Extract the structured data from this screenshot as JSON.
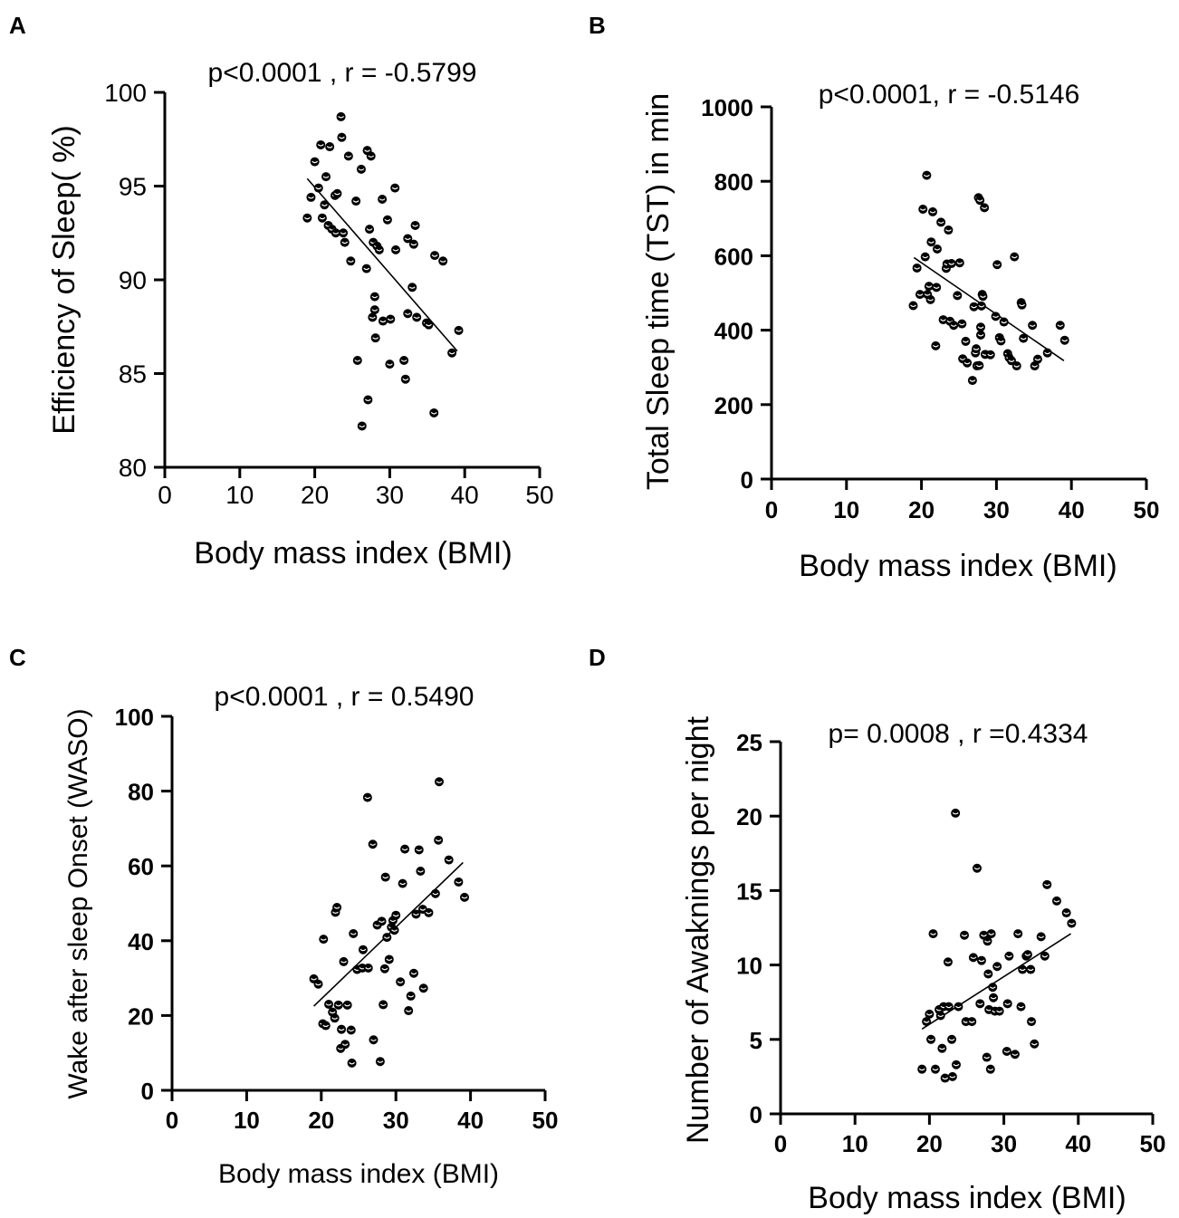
{
  "chart_data": [
    {
      "panel": "A",
      "type": "scatter",
      "annotation": "p<0.0001 , r = -0.5799",
      "xlabel": "Body mass index (BMI)",
      "ylabel": "Efficiency of Sleep( %)",
      "xlim": [
        0,
        50
      ],
      "ylim": [
        80,
        100
      ],
      "xticks": [
        "0",
        "10",
        "20",
        "30",
        "40",
        "50"
      ],
      "yticks": [
        "80",
        "85",
        "90",
        "95",
        "100"
      ],
      "fit_line": [
        [
          19.0,
          95.4
        ],
        [
          39.0,
          86.2
        ]
      ],
      "points": [
        [
          19.0,
          93.3
        ],
        [
          19.5,
          94.4
        ],
        [
          20.0,
          96.3
        ],
        [
          20.5,
          94.9
        ],
        [
          20.8,
          97.2
        ],
        [
          21.0,
          93.3
        ],
        [
          21.3,
          94.0
        ],
        [
          21.5,
          95.5
        ],
        [
          21.8,
          92.9
        ],
        [
          22.0,
          97.1
        ],
        [
          22.3,
          92.7
        ],
        [
          22.7,
          94.5
        ],
        [
          22.8,
          92.5
        ],
        [
          23.0,
          94.6
        ],
        [
          23.5,
          98.7
        ],
        [
          23.6,
          97.6
        ],
        [
          23.8,
          92.5
        ],
        [
          24.0,
          92.0
        ],
        [
          24.5,
          96.6
        ],
        [
          24.8,
          91.0
        ],
        [
          25.5,
          94.2
        ],
        [
          25.7,
          85.7
        ],
        [
          26.2,
          95.9
        ],
        [
          26.3,
          82.2
        ],
        [
          26.9,
          90.6
        ],
        [
          27.0,
          96.9
        ],
        [
          27.1,
          83.6
        ],
        [
          27.3,
          92.7
        ],
        [
          27.5,
          96.6
        ],
        [
          27.7,
          88.0
        ],
        [
          27.8,
          92.0
        ],
        [
          28.0,
          89.1
        ],
        [
          28.0,
          88.4
        ],
        [
          28.1,
          86.9
        ],
        [
          28.3,
          91.8
        ],
        [
          28.6,
          91.6
        ],
        [
          29.0,
          94.3
        ],
        [
          29.1,
          87.8
        ],
        [
          29.7,
          93.2
        ],
        [
          30.0,
          85.5
        ],
        [
          30.1,
          87.9
        ],
        [
          30.7,
          94.9
        ],
        [
          30.8,
          91.6
        ],
        [
          31.9,
          85.7
        ],
        [
          32.1,
          84.7
        ],
        [
          32.4,
          92.2
        ],
        [
          32.4,
          88.2
        ],
        [
          33.0,
          89.6
        ],
        [
          33.2,
          91.9
        ],
        [
          33.4,
          92.9
        ],
        [
          33.6,
          88.0
        ],
        [
          34.9,
          87.7
        ],
        [
          35.2,
          87.6
        ],
        [
          35.9,
          82.9
        ],
        [
          36.0,
          91.3
        ],
        [
          37.1,
          91.0
        ],
        [
          38.3,
          86.1
        ],
        [
          39.2,
          87.3
        ]
      ]
    },
    {
      "panel": "B",
      "type": "scatter",
      "annotation": "p<0.0001, r = -0.5146",
      "xlabel": "Body mass index (BMI)",
      "ylabel": "Total Sleep time (TST) in min",
      "xlim": [
        0,
        50
      ],
      "ylim": [
        0,
        1000
      ],
      "xticks": [
        "0",
        "10",
        "20",
        "30",
        "40",
        "50"
      ],
      "yticks": [
        "0",
        "200",
        "400",
        "600",
        "800",
        "1000"
      ],
      "fit_line": [
        [
          19.0,
          595
        ],
        [
          39.0,
          318
        ]
      ],
      "points": [
        [
          18.9,
          466
        ],
        [
          19.4,
          567
        ],
        [
          19.8,
          496
        ],
        [
          20.2,
          725
        ],
        [
          20.5,
          597
        ],
        [
          20.7,
          816
        ],
        [
          20.8,
          496
        ],
        [
          21.0,
          518
        ],
        [
          21.2,
          482
        ],
        [
          21.3,
          637
        ],
        [
          21.5,
          718
        ],
        [
          21.9,
          358
        ],
        [
          22.0,
          515
        ],
        [
          22.1,
          618
        ],
        [
          22.6,
          690
        ],
        [
          22.9,
          428
        ],
        [
          23.3,
          566
        ],
        [
          23.4,
          578
        ],
        [
          23.6,
          669
        ],
        [
          23.8,
          424
        ],
        [
          24.0,
          579
        ],
        [
          24.3,
          413
        ],
        [
          24.8,
          493
        ],
        [
          25.1,
          581
        ],
        [
          25.4,
          417
        ],
        [
          25.5,
          323
        ],
        [
          25.9,
          370
        ],
        [
          26.1,
          312
        ],
        [
          26.8,
          265
        ],
        [
          27.0,
          463
        ],
        [
          27.2,
          339
        ],
        [
          27.3,
          350
        ],
        [
          27.4,
          304
        ],
        [
          27.6,
          756
        ],
        [
          27.7,
          305
        ],
        [
          27.8,
          749
        ],
        [
          27.9,
          408
        ],
        [
          27.9,
          387
        ],
        [
          28.0,
          465
        ],
        [
          28.1,
          496
        ],
        [
          28.2,
          491
        ],
        [
          28.4,
          729
        ],
        [
          28.5,
          335
        ],
        [
          29.2,
          334
        ],
        [
          29.9,
          437
        ],
        [
          30.1,
          576
        ],
        [
          30.4,
          380
        ],
        [
          30.6,
          371
        ],
        [
          31.0,
          422
        ],
        [
          31.5,
          337
        ],
        [
          31.7,
          326
        ],
        [
          32.0,
          318
        ],
        [
          32.4,
          597
        ],
        [
          32.7,
          304
        ],
        [
          33.3,
          474
        ],
        [
          33.4,
          468
        ],
        [
          33.6,
          378
        ],
        [
          34.8,
          413
        ],
        [
          35.1,
          304
        ],
        [
          35.5,
          322
        ],
        [
          36.8,
          339
        ],
        [
          38.5,
          413
        ],
        [
          39.1,
          373
        ]
      ]
    },
    {
      "panel": "C",
      "type": "scatter",
      "annotation": "p<0.0001 , r = 0.5490",
      "xlabel": "Body mass index (BMI)",
      "ylabel": "Wake after sleep Onset (WASO)",
      "xlim": [
        0,
        50
      ],
      "ylim": [
        0,
        100
      ],
      "xticks": [
        "0",
        "10",
        "20",
        "30",
        "40",
        "50"
      ],
      "yticks": [
        "0",
        "20",
        "40",
        "60",
        "80",
        "100"
      ],
      "fit_line": [
        [
          19.0,
          22.5
        ],
        [
          39.0,
          60.9
        ]
      ],
      "points": [
        [
          19.0,
          29.8
        ],
        [
          19.6,
          28.4
        ],
        [
          20.2,
          17.8
        ],
        [
          20.3,
          40.4
        ],
        [
          20.6,
          17.3
        ],
        [
          21.0,
          23.0
        ],
        [
          21.5,
          20.9
        ],
        [
          21.8,
          19.3
        ],
        [
          21.9,
          47.6
        ],
        [
          22.1,
          48.9
        ],
        [
          22.3,
          22.8
        ],
        [
          22.6,
          11.2
        ],
        [
          22.7,
          16.3
        ],
        [
          23.0,
          34.4
        ],
        [
          23.2,
          12.3
        ],
        [
          23.5,
          22.8
        ],
        [
          24.0,
          16.1
        ],
        [
          24.1,
          7.3
        ],
        [
          24.3,
          41.9
        ],
        [
          24.8,
          32.3
        ],
        [
          25.5,
          32.7
        ],
        [
          25.6,
          37.6
        ],
        [
          26.2,
          78.3
        ],
        [
          26.3,
          32.7
        ],
        [
          26.9,
          65.8
        ],
        [
          27.0,
          13.5
        ],
        [
          27.5,
          44.2
        ],
        [
          27.9,
          7.7
        ],
        [
          28.1,
          45.2
        ],
        [
          28.3,
          22.9
        ],
        [
          28.5,
          32.5
        ],
        [
          28.6,
          57.0
        ],
        [
          28.8,
          40.9
        ],
        [
          29.1,
          35.0
        ],
        [
          29.4,
          43.6
        ],
        [
          29.6,
          45.4
        ],
        [
          29.8,
          42.8
        ],
        [
          30.0,
          46.8
        ],
        [
          30.6,
          29.0
        ],
        [
          30.9,
          55.3
        ],
        [
          31.2,
          64.5
        ],
        [
          31.7,
          21.3
        ],
        [
          32.0,
          25.2
        ],
        [
          32.4,
          31.3
        ],
        [
          32.7,
          47.1
        ],
        [
          33.1,
          64.3
        ],
        [
          33.3,
          58.6
        ],
        [
          33.6,
          48.4
        ],
        [
          33.7,
          27.3
        ],
        [
          34.4,
          47.5
        ],
        [
          35.3,
          52.6
        ],
        [
          35.7,
          66.9
        ],
        [
          35.8,
          82.5
        ],
        [
          37.1,
          61.6
        ],
        [
          38.4,
          55.7
        ],
        [
          39.2,
          51.6
        ]
      ]
    },
    {
      "panel": "D",
      "type": "scatter",
      "annotation": "p= 0.0008 , r =0.4334",
      "xlabel": "Body mass index (BMI)",
      "ylabel": "Number of Awaknings per night",
      "xlim": [
        0,
        50
      ],
      "ylim": [
        0,
        25
      ],
      "xticks": [
        "0",
        "10",
        "20",
        "30",
        "40",
        "50"
      ],
      "yticks": [
        "0",
        "5",
        "10",
        "15",
        "20",
        "25"
      ],
      "fit_line": [
        [
          19.0,
          5.7
        ],
        [
          39.0,
          12.1
        ]
      ],
      "points": [
        [
          19.0,
          3.0
        ],
        [
          19.6,
          6.2
        ],
        [
          20.0,
          6.7
        ],
        [
          20.2,
          5.0
        ],
        [
          20.5,
          12.1
        ],
        [
          20.8,
          3.0
        ],
        [
          21.3,
          7.0
        ],
        [
          21.5,
          6.6
        ],
        [
          21.7,
          4.4
        ],
        [
          21.9,
          7.2
        ],
        [
          22.1,
          2.4
        ],
        [
          22.5,
          10.2
        ],
        [
          22.6,
          7.2
        ],
        [
          23.0,
          5.0
        ],
        [
          23.1,
          2.5
        ],
        [
          23.5,
          20.2
        ],
        [
          23.6,
          3.3
        ],
        [
          23.9,
          7.2
        ],
        [
          24.7,
          12.0
        ],
        [
          24.9,
          6.2
        ],
        [
          25.7,
          6.2
        ],
        [
          25.9,
          10.5
        ],
        [
          26.4,
          16.5
        ],
        [
          26.8,
          7.4
        ],
        [
          27.0,
          10.3
        ],
        [
          27.3,
          12.0
        ],
        [
          27.7,
          3.8
        ],
        [
          27.8,
          11.6
        ],
        [
          27.9,
          9.4
        ],
        [
          28.0,
          7.0
        ],
        [
          28.2,
          3.0
        ],
        [
          28.3,
          12.1
        ],
        [
          28.5,
          8.5
        ],
        [
          28.6,
          7.8
        ],
        [
          28.8,
          6.9
        ],
        [
          29.1,
          9.9
        ],
        [
          29.4,
          6.9
        ],
        [
          30.4,
          4.2
        ],
        [
          30.5,
          7.4
        ],
        [
          30.7,
          10.6
        ],
        [
          31.5,
          4.0
        ],
        [
          31.9,
          12.1
        ],
        [
          32.3,
          7.2
        ],
        [
          32.5,
          9.7
        ],
        [
          33.0,
          10.6
        ],
        [
          33.2,
          10.7
        ],
        [
          33.6,
          9.7
        ],
        [
          33.7,
          6.2
        ],
        [
          34.1,
          4.7
        ],
        [
          35.0,
          11.9
        ],
        [
          35.5,
          10.6
        ],
        [
          35.8,
          15.4
        ],
        [
          37.1,
          14.3
        ],
        [
          38.4,
          13.5
        ],
        [
          39.1,
          12.8
        ]
      ]
    }
  ]
}
